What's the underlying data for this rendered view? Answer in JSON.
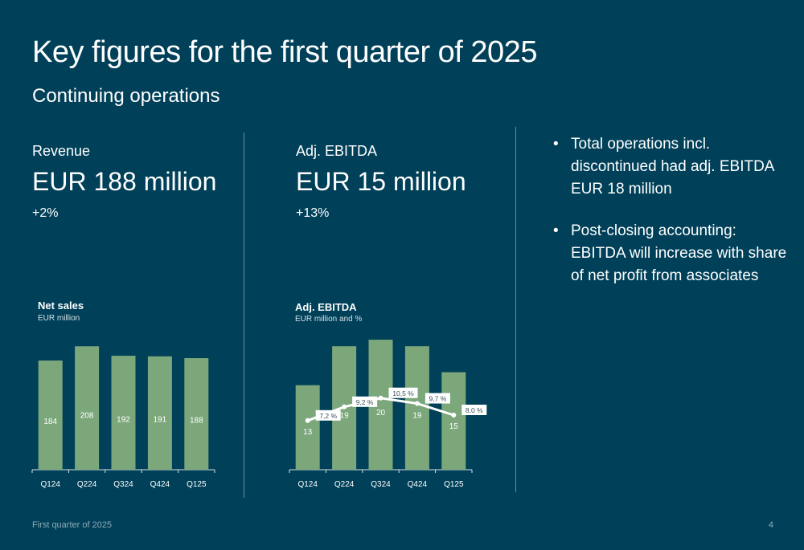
{
  "header": {
    "title": "Key figures for the first quarter of 2025",
    "subtitle": "Continuing operations"
  },
  "kpis": {
    "revenue": {
      "label": "Revenue",
      "value": "EUR 188 million",
      "change": "+2%"
    },
    "ebitda": {
      "label": "Adj. EBITDA",
      "value": "EUR 15 million",
      "change": "+13%"
    }
  },
  "bullets": [
    "Total operations incl. discontinued had adj. EBITDA EUR 18 million",
    "Post-closing accounting: EBITDA will increase with share of net profit from associates"
  ],
  "footer": {
    "left": "First quarter of 2025",
    "page": "4"
  },
  "colors": {
    "background": "#004059",
    "bar": "#7ba77b",
    "line": "#ffffff"
  },
  "chart_data": [
    {
      "type": "bar",
      "title": "Net sales",
      "subtitle": "EUR million",
      "categories": [
        "Q124",
        "Q224",
        "Q324",
        "Q424",
        "Q125"
      ],
      "values": [
        184,
        208,
        192,
        191,
        188
      ],
      "data_labels": [
        "184",
        "208",
        "192",
        "191",
        "188"
      ],
      "ylim": [
        0,
        230
      ],
      "grid": false
    },
    {
      "type": "bar",
      "title": "Adj. EBITDA",
      "subtitle": "EUR million and %",
      "categories": [
        "Q124",
        "Q224",
        "Q324",
        "Q424",
        "Q125"
      ],
      "values": [
        13,
        19,
        20,
        19,
        15
      ],
      "data_labels": [
        "13",
        "19",
        "20",
        "19",
        "15"
      ],
      "ylim": [
        0,
        21
      ],
      "grid": false,
      "line_series": {
        "values": [
          7.2,
          9.2,
          10.5,
          9.7,
          8.0
        ],
        "data_labels": [
          "7,2 %",
          "9,2 %",
          "10,5 %",
          "9,7 %",
          "8,0 %"
        ],
        "ylim": [
          0,
          20
        ]
      }
    }
  ]
}
